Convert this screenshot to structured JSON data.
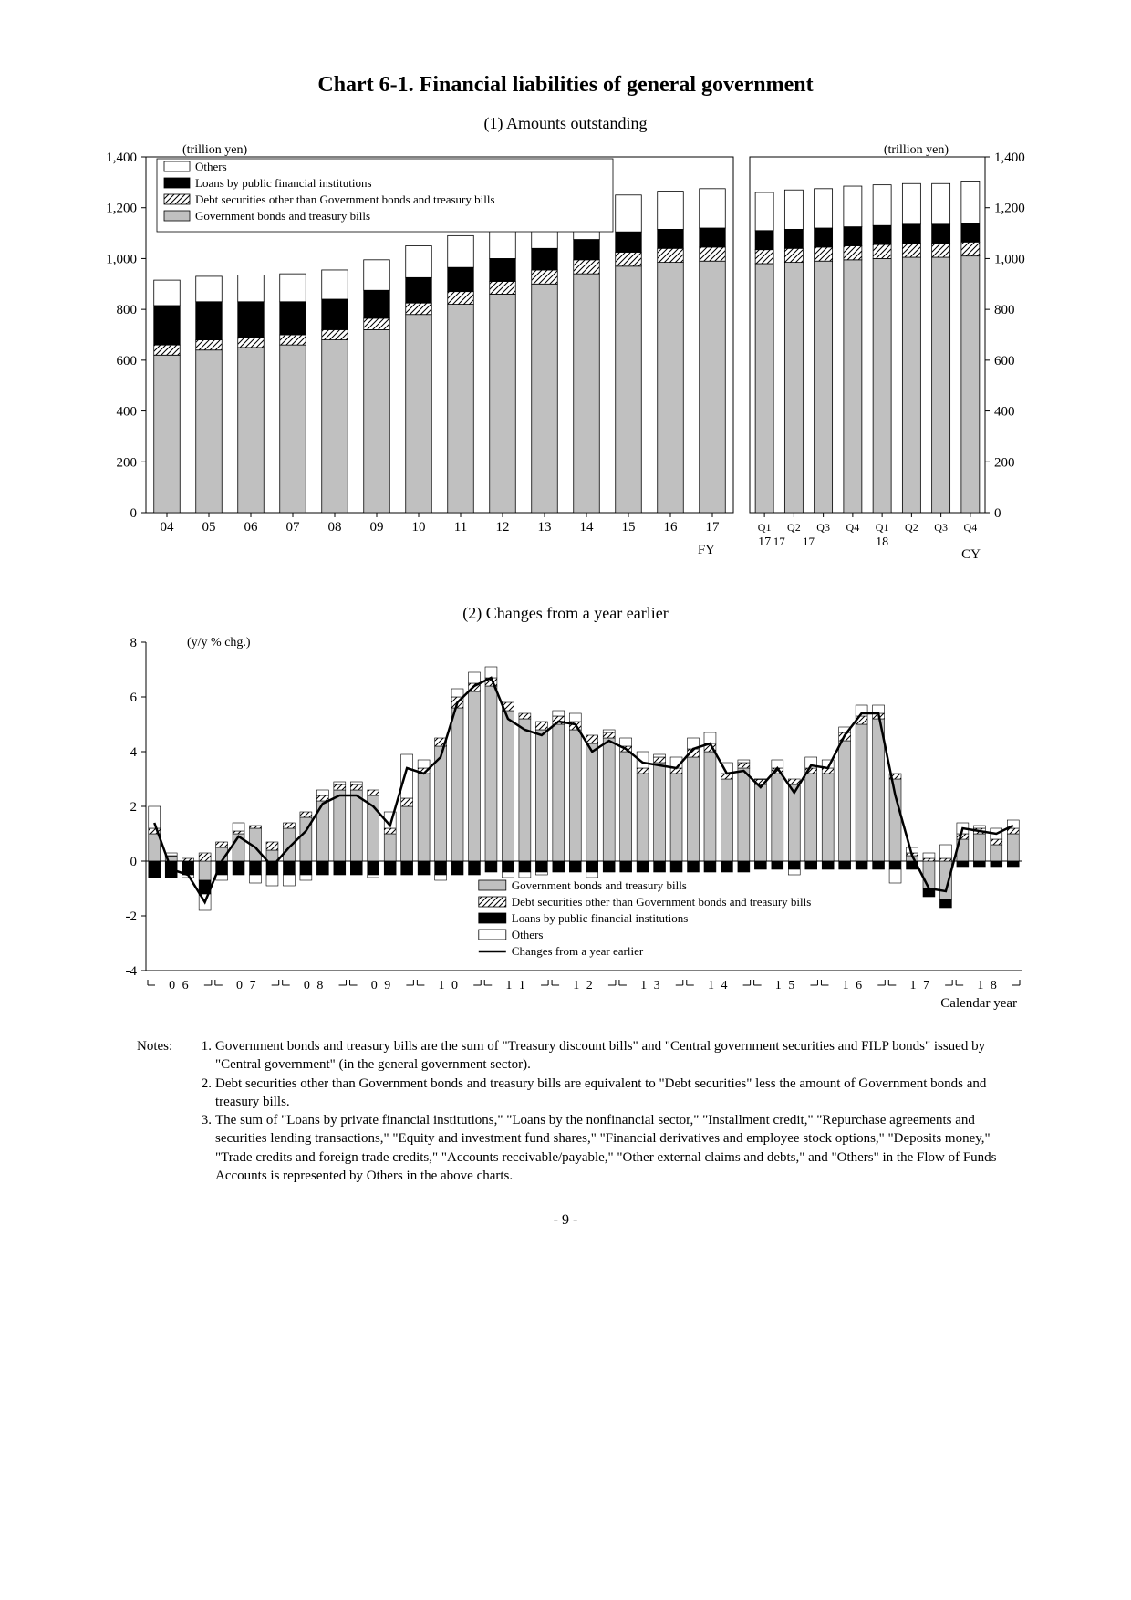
{
  "title": "Chart 6-1. Financial liabilities of general government",
  "panel1": {
    "subtitle": "(1) Amounts outstanding",
    "unit_left": "(trillion yen)",
    "unit_right": "(trillion yen)",
    "ymin": 0,
    "ymax": 1400,
    "ytick_step": 200,
    "legend": {
      "others": "Others",
      "loans": "Loans by public financial institutions",
      "debt_other": "Debt securities other than Government bonds and treasury bills",
      "gov_bonds": "Government bonds and treasury bills"
    },
    "colors": {
      "gov_bonds": "#c0c0c0",
      "debt_other_hatch": "#000000",
      "loans": "#000000",
      "others_fill": "#ffffff",
      "border": "#000000",
      "axis": "#000000",
      "tick_text": "#000000"
    },
    "bar_width_ratio": 0.62,
    "groupA": {
      "labels": [
        "04",
        "05",
        "06",
        "07",
        "08",
        "09",
        "10",
        "11",
        "12",
        "13",
        "14",
        "15",
        "16",
        "17"
      ],
      "footer": "FY",
      "gov_bonds": [
        620,
        640,
        650,
        660,
        680,
        720,
        780,
        820,
        860,
        900,
        940,
        970,
        985,
        990
      ],
      "debt_other": [
        40,
        40,
        40,
        40,
        40,
        45,
        45,
        50,
        50,
        55,
        55,
        55,
        55,
        55
      ],
      "loans": [
        155,
        150,
        140,
        130,
        120,
        110,
        100,
        95,
        90,
        85,
        80,
        80,
        75,
        75
      ],
      "others": [
        100,
        100,
        105,
        110,
        115,
        120,
        125,
        125,
        130,
        135,
        140,
        145,
        150,
        155
      ]
    },
    "groupB": {
      "labels": [
        "Q1",
        "Q2",
        "Q3",
        "Q4",
        "Q1",
        "Q2",
        "Q3",
        "Q4"
      ],
      "year_labels": [
        "17",
        "18"
      ],
      "footer": "CY",
      "gov_bonds": [
        980,
        985,
        990,
        995,
        1000,
        1005,
        1005,
        1010
      ],
      "debt_other": [
        55,
        55,
        55,
        55,
        55,
        55,
        55,
        55
      ],
      "loans": [
        75,
        75,
        75,
        75,
        75,
        75,
        75,
        75
      ],
      "others": [
        150,
        155,
        155,
        160,
        160,
        160,
        160,
        165
      ]
    }
  },
  "panel2": {
    "subtitle": "(2) Changes from a year earlier",
    "unit": "(y/y % chg.)",
    "ymin": -4,
    "ymax": 8,
    "ytick_step": 2,
    "footer": "Calendar year",
    "legend": {
      "gov_bonds": "Government bonds and treasury bills",
      "debt_other": "Debt securities other than Government bonds and treasury bills",
      "loans": "Loans by public financial institutions",
      "others": "Others",
      "line": "Changes from a year earlier"
    },
    "year_labels": [
      "0 6",
      "0 7",
      "0 8",
      "0 9",
      "1 0",
      "1 1",
      "1 2",
      "1 3",
      "1 4",
      "1 5",
      "1 6",
      "1 7",
      "1 8"
    ],
    "quarters": 52,
    "gov_bonds": [
      1.0,
      0.2,
      0.0,
      -0.7,
      0.5,
      1.0,
      1.2,
      0.4,
      1.2,
      1.6,
      2.2,
      2.6,
      2.6,
      2.4,
      1.0,
      2.0,
      3.2,
      4.2,
      5.6,
      6.2,
      6.4,
      5.5,
      5.2,
      4.8,
      5.0,
      4.8,
      4.3,
      4.5,
      4.0,
      3.2,
      3.6,
      3.2,
      3.8,
      4.0,
      3.0,
      3.4,
      2.8,
      3.2,
      2.8,
      3.2,
      3.2,
      4.4,
      5.0,
      5.2,
      3.0,
      0.2,
      -1.0,
      -1.4,
      0.8,
      1.0,
      0.6,
      1.0
    ],
    "debt_other": [
      0.2,
      0.0,
      0.1,
      0.3,
      0.2,
      0.1,
      0.1,
      0.3,
      0.2,
      0.2,
      0.2,
      0.2,
      0.2,
      0.2,
      0.2,
      0.3,
      0.2,
      0.3,
      0.4,
      0.3,
      0.3,
      0.3,
      0.2,
      0.3,
      0.3,
      0.3,
      0.3,
      0.2,
      0.2,
      0.2,
      0.2,
      0.2,
      0.3,
      0.3,
      0.2,
      0.2,
      0.2,
      0.2,
      0.2,
      0.2,
      0.2,
      0.3,
      0.3,
      0.2,
      0.2,
      0.1,
      0.1,
      0.1,
      0.2,
      0.2,
      0.2,
      0.2
    ],
    "loans": [
      -0.6,
      -0.6,
      -0.5,
      -0.5,
      -0.5,
      -0.5,
      -0.5,
      -0.5,
      -0.5,
      -0.5,
      -0.5,
      -0.5,
      -0.5,
      -0.5,
      -0.5,
      -0.5,
      -0.5,
      -0.5,
      -0.5,
      -0.5,
      -0.4,
      -0.4,
      -0.4,
      -0.4,
      -0.4,
      -0.4,
      -0.4,
      -0.4,
      -0.4,
      -0.4,
      -0.4,
      -0.4,
      -0.4,
      -0.4,
      -0.4,
      -0.4,
      -0.3,
      -0.3,
      -0.3,
      -0.3,
      -0.3,
      -0.3,
      -0.3,
      -0.3,
      -0.3,
      -0.3,
      -0.3,
      -0.3,
      -0.2,
      -0.2,
      -0.2,
      -0.2
    ],
    "others": [
      0.8,
      0.1,
      -0.1,
      -0.6,
      -0.2,
      0.3,
      -0.3,
      -0.4,
      -0.4,
      -0.2,
      0.2,
      0.1,
      0.1,
      -0.1,
      0.6,
      1.6,
      0.3,
      -0.2,
      0.3,
      0.4,
      0.4,
      -0.2,
      -0.2,
      -0.1,
      0.2,
      0.3,
      -0.2,
      0.1,
      0.3,
      0.6,
      0.1,
      0.4,
      0.4,
      0.4,
      0.4,
      0.1,
      0.0,
      0.3,
      -0.2,
      0.4,
      0.3,
      0.2,
      0.4,
      0.3,
      -0.5,
      0.2,
      0.2,
      0.5,
      0.4,
      0.1,
      0.4,
      0.3
    ],
    "line_color": "#000000",
    "line_width": 2.5
  },
  "notes": {
    "label": "Notes:",
    "items": [
      "Government bonds and treasury bills are the sum of \"Treasury discount bills\" and \"Central government securities and FILP bonds\" issued by \"Central government\" (in the general government sector).",
      "Debt securities other than Government bonds and treasury bills are equivalent to \"Debt securities\" less the amount of Government bonds and treasury bills.",
      "The sum of \"Loans by private financial institutions,\" \"Loans by the nonfinancial sector,\" \"Installment credit,\" \"Repurchase agreements and securities lending transactions,\" \"Equity and investment fund shares,\" \"Financial derivatives and employee stock options,\" \"Deposits money,\" \"Trade credits and foreign trade credits,\" \"Accounts receivable/payable,\" \"Other external claims and debts,\" and \"Others\" in the Flow of Funds Accounts is represented by Others in the above charts."
    ]
  },
  "page_number": "- 9 -"
}
